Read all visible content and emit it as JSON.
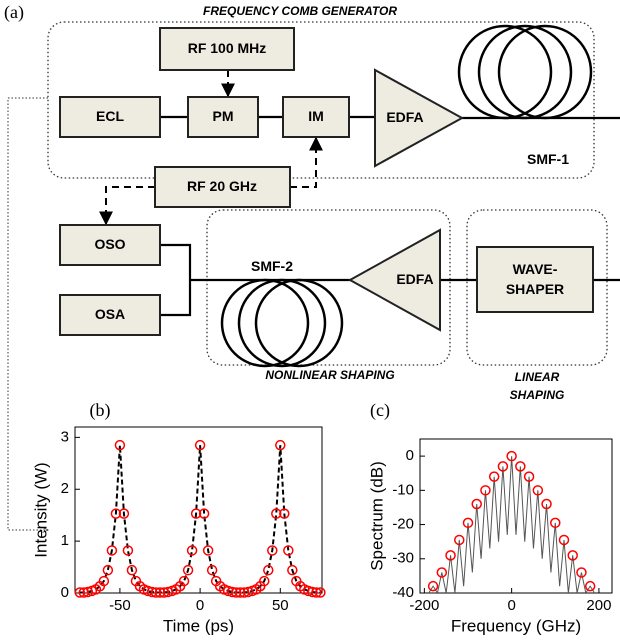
{
  "diagram": {
    "panel_label": "(a)",
    "groups": [
      {
        "lines": [
          "FREQUENCY COMB GENERATOR"
        ]
      },
      {
        "lines": [
          "NONLINEAR SHAPING"
        ]
      },
      {
        "lines": [
          "LINEAR",
          "SHAPING"
        ]
      }
    ],
    "nodes": [
      {
        "lines": [
          "RF 100 MHz"
        ]
      },
      {
        "lines": [
          "ECL"
        ]
      },
      {
        "lines": [
          "PM"
        ]
      },
      {
        "lines": [
          "IM"
        ]
      },
      {
        "lines": [
          "EDFA"
        ]
      },
      {
        "lines": [
          "SMF-1"
        ]
      },
      {
        "lines": [
          "RF 20 GHz"
        ]
      },
      {
        "lines": [
          "OSO"
        ]
      },
      {
        "lines": [
          "OSA"
        ]
      },
      {
        "lines": [
          "SMF-2"
        ]
      },
      {
        "lines": [
          "EDFA"
        ]
      },
      {
        "lines": [
          "WAVE-",
          "SHAPER"
        ]
      }
    ]
  },
  "chart_data": [
    {
      "type": "line",
      "panel_label": "(b)",
      "x_label": "Time (ps)",
      "y_label": "Intensity (W)",
      "xlim": [
        -78,
        76
      ],
      "ylim": [
        0,
        3.2
      ],
      "xticks": [
        -50,
        0,
        50
      ],
      "yticks": [
        0,
        1,
        2,
        3
      ],
      "x": [
        -75,
        -72.5,
        -70,
        -67.5,
        -65,
        -62.5,
        -60,
        -57.5,
        -55,
        -52.5,
        -50,
        -47.5,
        -45,
        -42.5,
        -40,
        -37.5,
        -35,
        -32.5,
        -30,
        -27.5,
        -25,
        -22.5,
        -20,
        -17.5,
        -15,
        -12.5,
        -10,
        -7.5,
        -5,
        -2.5,
        0,
        2.5,
        5,
        7.5,
        10,
        12.5,
        15,
        17.5,
        20,
        22.5,
        25,
        27.5,
        30,
        32.5,
        35,
        37.5,
        40,
        42.5,
        45,
        47.5,
        50,
        52.5,
        55,
        57.5,
        60,
        62.5,
        65,
        67.5,
        70,
        72.5,
        75
      ],
      "series": [
        {
          "color": "#000000",
          "dashed": true,
          "values": [
            0.01,
            0.01,
            0.02,
            0.04,
            0.07,
            0.13,
            0.23,
            0.44,
            0.82,
            1.53,
            2.85,
            1.53,
            0.82,
            0.44,
            0.23,
            0.13,
            0.07,
            0.04,
            0.02,
            0.01,
            0.01,
            0.01,
            0.02,
            0.04,
            0.07,
            0.13,
            0.23,
            0.44,
            0.82,
            1.53,
            2.85,
            1.53,
            0.82,
            0.44,
            0.23,
            0.13,
            0.07,
            0.04,
            0.02,
            0.01,
            0.01,
            0.01,
            0.02,
            0.04,
            0.07,
            0.13,
            0.23,
            0.44,
            0.82,
            1.53,
            2.85,
            1.53,
            0.82,
            0.44,
            0.23,
            0.13,
            0.07,
            0.04,
            0.02,
            0.01,
            0.01
          ]
        },
        {
          "color": "#ff0000",
          "marker": "circle",
          "values": [
            0.01,
            0.01,
            0.02,
            0.04,
            0.07,
            0.13,
            0.23,
            0.44,
            0.82,
            1.53,
            2.85,
            1.53,
            0.82,
            0.44,
            0.23,
            0.13,
            0.07,
            0.04,
            0.02,
            0.01,
            0.01,
            0.01,
            0.02,
            0.04,
            0.07,
            0.13,
            0.23,
            0.44,
            0.82,
            1.53,
            2.85,
            1.53,
            0.82,
            0.44,
            0.23,
            0.13,
            0.07,
            0.04,
            0.02,
            0.01,
            0.01,
            0.01,
            0.02,
            0.04,
            0.07,
            0.13,
            0.23,
            0.44,
            0.82,
            1.53,
            2.85,
            1.53,
            0.82,
            0.44,
            0.23,
            0.13,
            0.07,
            0.04,
            0.02,
            0.01,
            0.01
          ]
        }
      ]
    },
    {
      "type": "line",
      "panel_label": "(c)",
      "x_label": "Frequency (GHz)",
      "y_label": "Spectrum (dB)",
      "xlim": [
        -210,
        230
      ],
      "ylim": [
        -40,
        5
      ],
      "xticks": [
        -200,
        0,
        200
      ],
      "yticks": [
        -40,
        -30,
        -20,
        -10,
        0
      ],
      "series": [
        {
          "color": "#555555",
          "x": [
            -190,
            -180,
            -170,
            -160,
            -150,
            -140,
            -130,
            -120,
            -110,
            -100,
            -90,
            -80,
            -70,
            -60,
            -50,
            -40,
            -30,
            -20,
            -10,
            0,
            10,
            20,
            30,
            40,
            50,
            60,
            70,
            80,
            90,
            100,
            110,
            120,
            130,
            140,
            150,
            160,
            170,
            180,
            190
          ],
          "values": [
            -40,
            -38,
            -40,
            -34,
            -40,
            -29,
            -40,
            -24.5,
            -38,
            -19.5,
            -34,
            -14,
            -30,
            -10,
            -27,
            -6,
            -25,
            -3,
            -23,
            0,
            -23,
            -3,
            -25,
            -6,
            -27,
            -10,
            -30,
            -14,
            -34,
            -19.5,
            -38,
            -24.5,
            -40,
            -29,
            -40,
            -34,
            -40,
            -38,
            -40
          ]
        },
        {
          "color": "#ff0000",
          "marker": "circle",
          "x": [
            -180,
            -160,
            -140,
            -120,
            -100,
            -80,
            -60,
            -40,
            -20,
            0,
            20,
            40,
            60,
            80,
            100,
            120,
            140,
            160,
            180
          ],
          "values": [
            -38,
            -34,
            -29,
            -24.5,
            -19.5,
            -14,
            -10,
            -6,
            -3,
            0,
            -3,
            -6,
            -10,
            -14,
            -19.5,
            -24.5,
            -29,
            -34,
            -38
          ]
        }
      ]
    }
  ]
}
